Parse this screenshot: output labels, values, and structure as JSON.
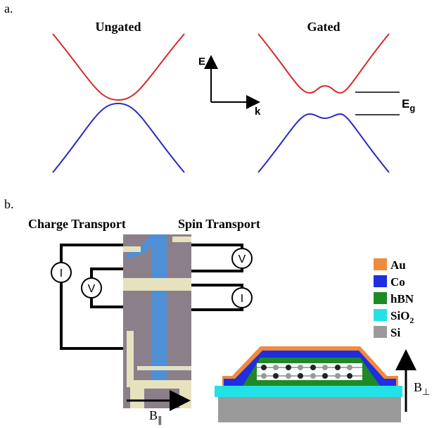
{
  "panel_a": {
    "label": "a.",
    "left_title": "Ungated",
    "right_title": "Gated",
    "axis_e": "E",
    "axis_k": "k",
    "gap_label": {
      "text": "E",
      "subscript": "g"
    }
  },
  "panel_b": {
    "label": "b.",
    "charge_title": "Charge Transport",
    "spin_title": "Spin Transport",
    "meters": [
      "I",
      "V",
      "V",
      "I"
    ],
    "field_parallel": {
      "text": "B",
      "subscript": "∥"
    },
    "field_perp": {
      "text": "B",
      "subscript": "⊥"
    },
    "legend": [
      {
        "text": "Au",
        "subscript": null
      },
      {
        "text": "Co",
        "subscript": null
      },
      {
        "text": "hBN",
        "subscript": null
      },
      {
        "text": "SiO",
        "subscript": "2"
      },
      {
        "text": "Si",
        "subscript": null
      }
    ]
  }
}
